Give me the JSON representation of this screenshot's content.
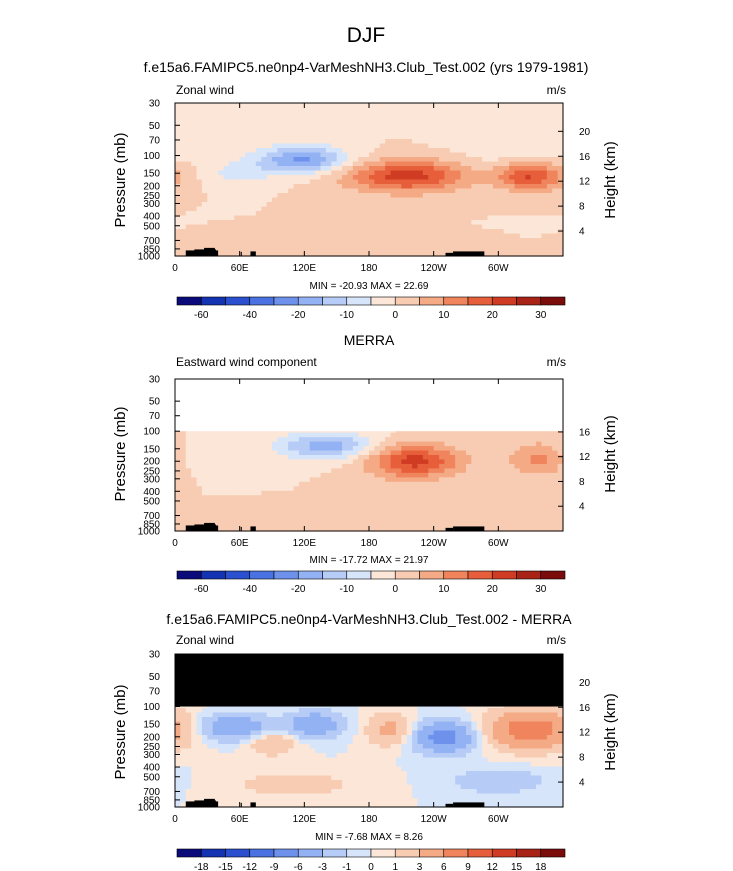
{
  "figure": {
    "title": "DJF",
    "subtitle": "f.e15a6.FAMIPC5.ne0np4-VarMeshNH3.Club_Test.002 (yrs 1979-1981)"
  },
  "chart_data": [
    {
      "type": "heatmap",
      "title": "",
      "left_label": "Zonal wind",
      "units": "m/s",
      "ylabel": "Pressure (mb)",
      "ylabel_right": "Height (km)",
      "x_ticks": [
        "0",
        "60E",
        "120E",
        "180",
        "120W",
        "60W"
      ],
      "x_tick_values": [
        0,
        60,
        120,
        180,
        240,
        300
      ],
      "xlim": [
        0,
        360
      ],
      "y_ticks": [
        "30",
        "50",
        "70",
        "100",
        "150",
        "200",
        "250",
        "300",
        "400",
        "500",
        "700",
        "850",
        "1000"
      ],
      "y_tick_values": [
        30,
        50,
        70,
        100,
        150,
        200,
        250,
        300,
        400,
        500,
        700,
        850,
        1000
      ],
      "ylim": [
        1000,
        30
      ],
      "y_scale": "log",
      "height_ticks": [
        "4",
        "8",
        "12",
        "16",
        "20"
      ],
      "height_tick_values": [
        4,
        8,
        12,
        16,
        20
      ],
      "stats": "MIN = -20.93  MAX = 22.69",
      "min": -20.93,
      "max": 22.69,
      "masked_above_mb": null,
      "jets": [
        {
          "lon": 215,
          "p": 160,
          "amp": 22.69,
          "sx": 40,
          "sp": 0.26
        },
        {
          "lon": 330,
          "p": 160,
          "amp": 21.0,
          "sx": 22,
          "sp": 0.24
        },
        {
          "lon": 118,
          "p": 110,
          "amp": -20.93,
          "sx": 30,
          "sp": 0.22
        },
        {
          "lon": 60,
          "p": 150,
          "amp": -7.0,
          "sx": 20,
          "sp": 0.2
        },
        {
          "lon": 320,
          "p": 70,
          "amp": -5.0,
          "sx": 40,
          "sp": 0.5
        },
        {
          "lon": 150,
          "p": 700,
          "amp": 3.0,
          "sx": 40,
          "sp": 0.15
        }
      ],
      "colorbar": {
        "labels": [
          "-60",
          "-40",
          "-20",
          "-10",
          "0",
          "10",
          "20",
          "30"
        ],
        "label_positions": [
          1,
          3,
          5,
          7,
          9,
          11,
          13,
          15
        ],
        "levels": [
          -70,
          -60,
          -50,
          -40,
          -30,
          -20,
          -15,
          -10,
          -5,
          0,
          5,
          10,
          15,
          20,
          25,
          30,
          35
        ]
      }
    },
    {
      "type": "heatmap",
      "title": "MERRA",
      "left_label": "Eastward wind component",
      "units": "m/s",
      "ylabel": "Pressure (mb)",
      "ylabel_right": "Height (km)",
      "x_ticks": [
        "0",
        "60E",
        "120E",
        "180",
        "120W",
        "60W"
      ],
      "x_tick_values": [
        0,
        60,
        120,
        180,
        240,
        300
      ],
      "xlim": [
        0,
        360
      ],
      "y_ticks": [
        "30",
        "50",
        "70",
        "100",
        "150",
        "200",
        "250",
        "300",
        "400",
        "500",
        "700",
        "850",
        "1000"
      ],
      "y_tick_values": [
        30,
        50,
        70,
        100,
        150,
        200,
        250,
        300,
        400,
        500,
        700,
        850,
        1000
      ],
      "ylim": [
        1000,
        30
      ],
      "y_scale": "log",
      "height_ticks": [
        "4",
        "8",
        "12",
        "16"
      ],
      "height_tick_values": [
        4,
        8,
        12,
        16
      ],
      "stats": "MIN = -17.72  MAX = 21.97",
      "min": -17.72,
      "max": 21.97,
      "masked_above_mb": 100,
      "mask_color": "#ffffff",
      "jets": [
        {
          "lon": 222,
          "p": 200,
          "amp": 21.97,
          "sx": 30,
          "sp": 0.28
        },
        {
          "lon": 338,
          "p": 190,
          "amp": 12.0,
          "sx": 20,
          "sp": 0.28
        },
        {
          "lon": 140,
          "p": 140,
          "amp": -17.72,
          "sx": 32,
          "sp": 0.22
        },
        {
          "lon": 30,
          "p": 180,
          "amp": -4.0,
          "sx": 30,
          "sp": 0.25
        },
        {
          "lon": 130,
          "p": 700,
          "amp": 3.0,
          "sx": 40,
          "sp": 0.15
        }
      ],
      "colorbar": {
        "labels": [
          "-60",
          "-40",
          "-20",
          "-10",
          "0",
          "10",
          "20",
          "30"
        ],
        "label_positions": [
          1,
          3,
          5,
          7,
          9,
          11,
          13,
          15
        ],
        "levels": [
          -70,
          -60,
          -50,
          -40,
          -30,
          -20,
          -15,
          -10,
          -5,
          0,
          5,
          10,
          15,
          20,
          25,
          30,
          35
        ]
      }
    },
    {
      "type": "heatmap",
      "title": "f.e15a6.FAMIPC5.ne0np4-VarMeshNH3.Club_Test.002 - MERRA",
      "left_label": "Zonal wind",
      "units": "m/s",
      "ylabel": "Pressure (mb)",
      "ylabel_right": "Height (km)",
      "x_ticks": [
        "0",
        "60E",
        "120E",
        "180",
        "120W",
        "60W"
      ],
      "x_tick_values": [
        0,
        60,
        120,
        180,
        240,
        300
      ],
      "xlim": [
        0,
        360
      ],
      "y_ticks": [
        "30",
        "50",
        "70",
        "100",
        "150",
        "200",
        "250",
        "300",
        "400",
        "500",
        "700",
        "850",
        "1000"
      ],
      "y_tick_values": [
        30,
        50,
        70,
        100,
        150,
        200,
        250,
        300,
        400,
        500,
        700,
        850,
        1000
      ],
      "ylim": [
        1000,
        30
      ],
      "y_scale": "log",
      "height_ticks": [
        "4",
        "8",
        "12",
        "16",
        "20"
      ],
      "height_tick_values": [
        4,
        8,
        12,
        16,
        20
      ],
      "stats": "MIN = -7.68  MAX = 8.26",
      "min": -7.68,
      "max": 8.26,
      "masked_above_mb": 100,
      "mask_color": "#000000",
      "jets": [
        {
          "lon": 250,
          "p": 200,
          "amp": -7.68,
          "sx": 20,
          "sp": 0.25
        },
        {
          "lon": 330,
          "p": 170,
          "amp": 8.26,
          "sx": 28,
          "sp": 0.3
        },
        {
          "lon": 55,
          "p": 160,
          "amp": -6.0,
          "sx": 22,
          "sp": 0.2
        },
        {
          "lon": 130,
          "p": 150,
          "amp": -5.5,
          "sx": 18,
          "sp": 0.2
        },
        {
          "lon": 200,
          "p": 170,
          "amp": 4.0,
          "sx": 15,
          "sp": 0.25
        },
        {
          "lon": 90,
          "p": 230,
          "amp": 3.0,
          "sx": 15,
          "sp": 0.2
        },
        {
          "lon": 110,
          "p": 600,
          "amp": 2.0,
          "sx": 40,
          "sp": 0.2
        },
        {
          "lon": 300,
          "p": 550,
          "amp": -2.5,
          "sx": 30,
          "sp": 0.2
        }
      ],
      "colorbar": {
        "labels": [
          "-18",
          "-15",
          "-12",
          "-9",
          "-6",
          "-3",
          "-1",
          "0",
          "1",
          "3",
          "6",
          "9",
          "12",
          "15",
          "18"
        ],
        "label_positions": [
          1,
          2,
          3,
          4,
          5,
          6,
          7,
          8,
          9,
          10,
          11,
          12,
          13,
          14,
          15
        ],
        "levels": [
          -21,
          -18,
          -15,
          -12,
          -9,
          -6,
          -3,
          -1,
          0,
          1,
          3,
          6,
          9,
          12,
          15,
          18,
          21
        ]
      }
    }
  ],
  "colorbar_colors": [
    "#0a0a7a",
    "#1433b2",
    "#2a50cf",
    "#4a72e2",
    "#6e92ec",
    "#93b2f3",
    "#b6ccf6",
    "#d6e5fa",
    "#fbe6d8",
    "#f8ccb2",
    "#f5aa86",
    "#f0845c",
    "#e65f3a",
    "#cf3c23",
    "#a82216",
    "#7a0c0c"
  ],
  "topography_color": "#000000"
}
